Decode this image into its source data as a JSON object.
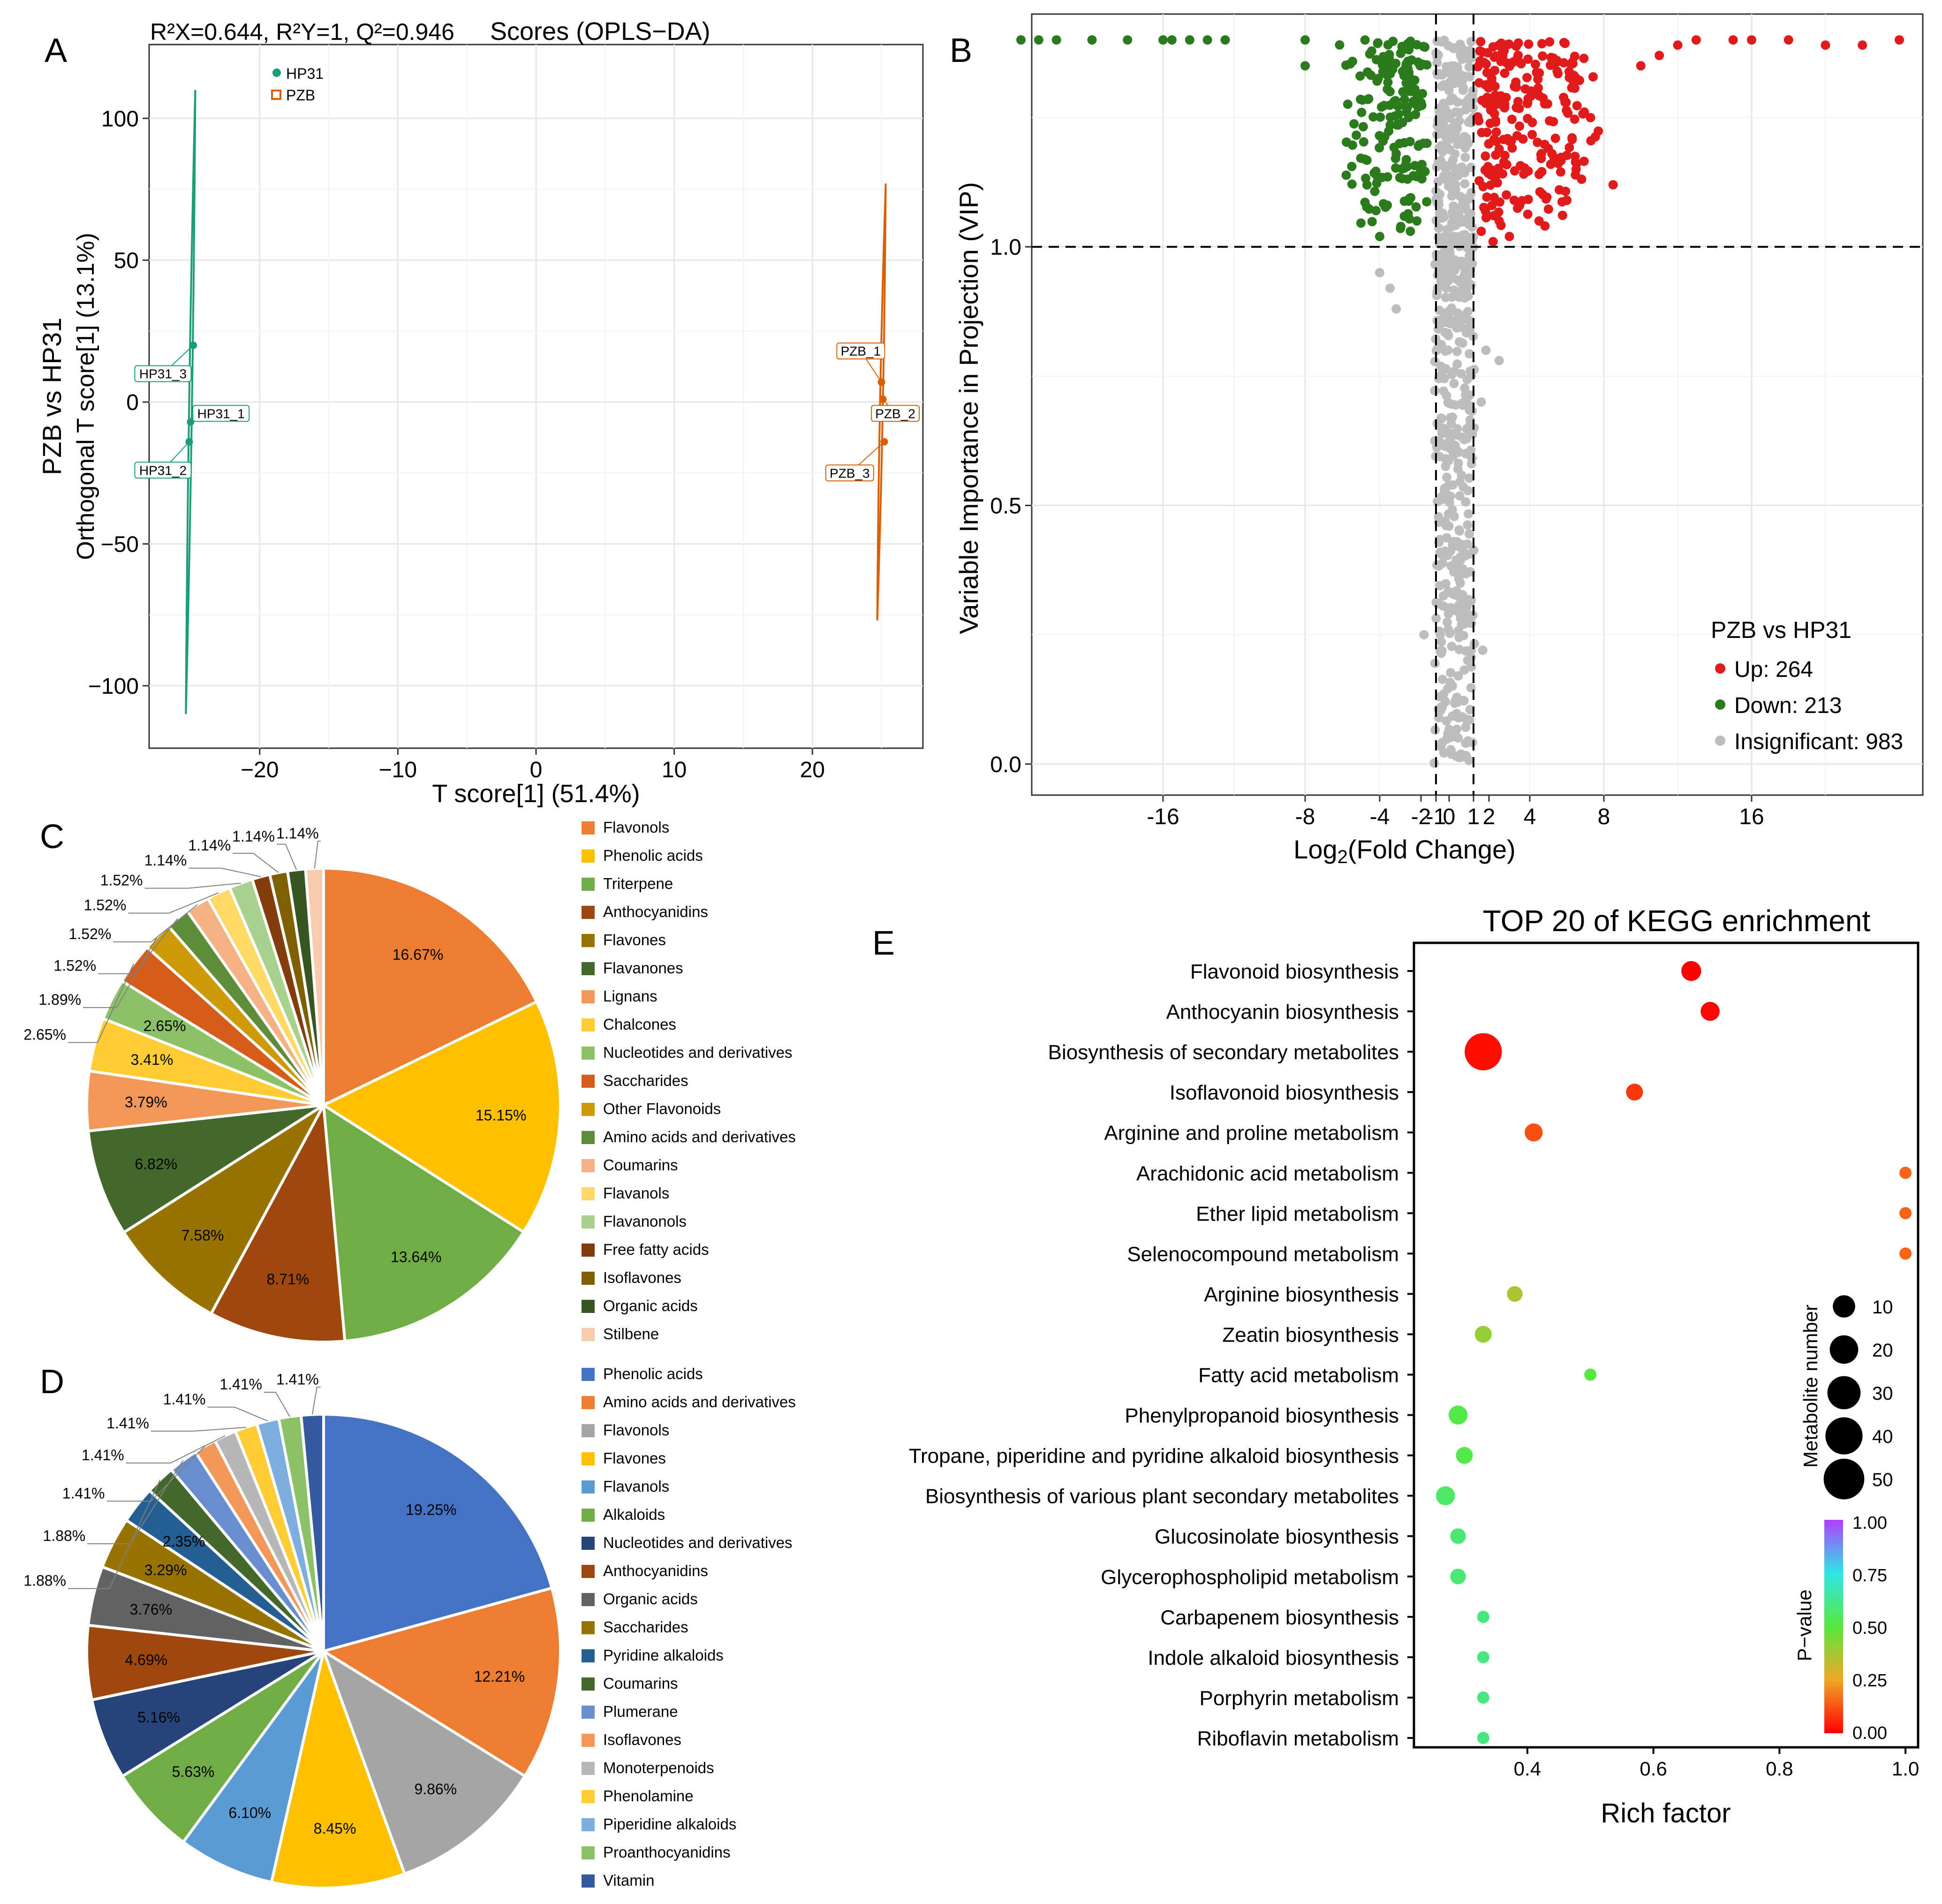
{
  "chart_data": [
    {
      "panel": "A",
      "type": "scatter",
      "title": "Scores (OPLS−DA)",
      "subtitle": "R²X=0.644, R²Y=1, Q²=0.946",
      "xlabel": "T score[1] (51.4%)",
      "ylabel": "PZB vs HP31",
      "ylabel2": "Orthogonal T score[1] (13.1%)",
      "xlim": [
        -28,
        28
      ],
      "ylim": [
        -122,
        126
      ],
      "xticks": [
        -20,
        -10,
        0,
        10,
        20
      ],
      "yticks": [
        -100,
        -50,
        0,
        50,
        100
      ],
      "xtick_labels": [
        "−20",
        "−10",
        "0",
        "10",
        "20"
      ],
      "ytick_labels": [
        "−100",
        "−50",
        "0",
        "50",
        "100"
      ],
      "legend": [
        {
          "name": "HP31",
          "color": "#1b9e77",
          "shape": "circle"
        },
        {
          "name": "PZB",
          "color": "#d95f02",
          "shape": "square"
        }
      ],
      "series": [
        {
          "name": "HP31",
          "color": "#1b9e77",
          "ellipse": {
            "cx": -25,
            "cy": 0,
            "top": 110,
            "bottom": -110
          },
          "points": [
            {
              "label": "HP31_3",
              "x": -24.8,
              "y": 20,
              "lx": -27,
              "ly": 10
            },
            {
              "label": "HP31_1",
              "x": -25.0,
              "y": -7,
              "lx": -22.8,
              "ly": -4
            },
            {
              "label": "HP31_2",
              "x": -25.1,
              "y": -14,
              "lx": -27,
              "ly": -24
            }
          ]
        },
        {
          "name": "PZB",
          "color": "#d95f02",
          "ellipse": {
            "cx": 25,
            "cy": 0,
            "top": 77,
            "bottom": -77
          },
          "points": [
            {
              "label": "PZB_1",
              "x": 25.0,
              "y": 7,
              "lx": 23.5,
              "ly": 18
            },
            {
              "label": "PZB_2",
              "x": 25.1,
              "y": 1,
              "lx": 26,
              "ly": -4
            },
            {
              "label": "PZB_3",
              "x": 25.2,
              "y": -14,
              "lx": 22.7,
              "ly": -25
            }
          ]
        }
      ]
    },
    {
      "panel": "B",
      "type": "scatter",
      "title": "",
      "xlabel": "Log2(Fold Change)",
      "xlabel_main": "Log",
      "xlabel_sub": "2",
      "xlabel_rest": "(Fold Change)",
      "ylabel": "Variable Importance in Projection (VIP)",
      "ylim": [
        -0.06,
        1.45
      ],
      "xtick_values": [
        -16,
        -8,
        -4,
        -2,
        -1,
        0,
        1,
        2,
        4,
        8,
        16
      ],
      "xtick_labels": [
        "-16",
        "-8",
        "-4",
        "-2",
        "-1",
        "0",
        "1",
        "2",
        "4",
        "8",
        "16"
      ],
      "yticks": [
        0.0,
        0.5,
        1.0
      ],
      "ytick_labels": [
        "0.0",
        "0.5",
        "1.0"
      ],
      "threshold_vip": 1.0,
      "threshold_fc": [
        -1,
        1
      ],
      "legend_title": "PZB vs HP31",
      "legend": [
        {
          "name": "Up: 264",
          "color": "#e31a1c"
        },
        {
          "name": "Down: 213",
          "color": "#2b7b1e"
        },
        {
          "name": "Insignificant: 983",
          "color": "#bdbdbd"
        }
      ],
      "counts": {
        "up": 264,
        "down": 213,
        "insignificant": 983
      },
      "sample_points": {
        "up": [
          [
            24,
            1.4
          ],
          [
            22,
            1.39
          ],
          [
            20,
            1.39
          ],
          [
            18,
            1.4
          ],
          [
            16,
            1.4
          ],
          [
            15,
            1.4
          ],
          [
            13,
            1.4
          ],
          [
            12,
            1.39
          ],
          [
            11,
            1.37
          ],
          [
            10,
            1.35
          ],
          [
            6.5,
            1.15
          ],
          [
            6,
            1.09
          ],
          [
            5.2,
            1.18
          ],
          [
            8.5,
            1.12
          ],
          [
            4.5,
            1.05
          ],
          [
            3.5,
            1.08
          ],
          [
            2.5,
            1.05
          ],
          [
            3,
            1.02
          ],
          [
            2.2,
            1.01
          ],
          [
            1.5,
            1.03
          ]
        ],
        "down": [
          [
            -24,
            1.4
          ],
          [
            -23,
            1.4
          ],
          [
            -22,
            1.4
          ],
          [
            -20,
            1.4
          ],
          [
            -18,
            1.4
          ],
          [
            -16,
            1.4
          ],
          [
            -15.5,
            1.4
          ],
          [
            -14.5,
            1.4
          ],
          [
            -13.5,
            1.4
          ],
          [
            -12.5,
            1.4
          ],
          [
            -8,
            1.4
          ],
          [
            -8,
            1.35
          ],
          [
            -4.2,
            1.07
          ],
          [
            -4.0,
            1.02
          ],
          [
            -3.5,
            1.3
          ],
          [
            -3.2,
            1.18
          ],
          [
            -2.6,
            1.25
          ],
          [
            -2.2,
            1.05
          ]
        ],
        "insignificant": [
          [
            -4,
            0.95
          ],
          [
            -3.5,
            0.92
          ],
          [
            -3.2,
            0.88
          ],
          [
            1.8,
            0.8
          ],
          [
            2.5,
            0.78
          ],
          [
            1.5,
            0.7
          ],
          [
            -1.8,
            0.25
          ],
          [
            1.6,
            0.22
          ]
        ]
      }
    },
    {
      "panel": "C",
      "type": "pie",
      "title": "",
      "slices": [
        {
          "label": "Flavonols",
          "value": 16.67,
          "text": "16.67%",
          "color": "#ED7D31"
        },
        {
          "label": "Phenolic acids",
          "value": 15.15,
          "text": "15.15%",
          "color": "#FFC000"
        },
        {
          "label": "Triterpene",
          "value": 13.64,
          "text": "13.64%",
          "color": "#70AD47"
        },
        {
          "label": "Anthocyanidins",
          "value": 8.71,
          "text": "8.71%",
          "color": "#9E480E"
        },
        {
          "label": "Flavones",
          "value": 7.58,
          "text": "7.58%",
          "color": "#997300"
        },
        {
          "label": "Flavanones",
          "value": 6.82,
          "text": "6.82%",
          "color": "#43682B"
        },
        {
          "label": "Lignans",
          "value": 3.79,
          "text": "3.79%",
          "color": "#F1975A"
        },
        {
          "label": "Chalcones",
          "value": 3.41,
          "text": "3.41%",
          "color": "#FFCD33"
        },
        {
          "label": "Nucleotides and derivatives",
          "value": 2.65,
          "text": "2.65%",
          "color": "#8CC168"
        },
        {
          "label": "Saccharides",
          "value": 2.65,
          "text": "2.65%",
          "color": "#D55C19"
        },
        {
          "label": "Other Flavonoids",
          "value": 1.89,
          "text": "1.89%",
          "color": "#CC9A06"
        },
        {
          "label": "Amino acids and derivatives",
          "value": 1.52,
          "text": "1.52%",
          "color": "#5E8C3B"
        },
        {
          "label": "Coumarins",
          "value": 1.52,
          "text": "1.52%",
          "color": "#F4B183"
        },
        {
          "label": "Flavanols",
          "value": 1.52,
          "text": "1.52%",
          "color": "#FFD966"
        },
        {
          "label": "Flavanonols",
          "value": 1.52,
          "text": "1.52%",
          "color": "#A9D18E"
        },
        {
          "label": "Free fatty acids",
          "value": 1.14,
          "text": "1.14%",
          "color": "#843C0C"
        },
        {
          "label": "Isoflavones",
          "value": 1.14,
          "text": "1.14%",
          "color": "#7F6000"
        },
        {
          "label": "Organic acids",
          "value": 1.14,
          "text": "1.14%",
          "color": "#375623"
        },
        {
          "label": "Stilbene",
          "value": 1.14,
          "text": "1.14%",
          "color": "#F8CBAD"
        }
      ]
    },
    {
      "panel": "D",
      "type": "pie",
      "title": "",
      "slices": [
        {
          "label": "Phenolic acids",
          "value": 19.25,
          "text": "19.25%",
          "color": "#4472C4"
        },
        {
          "label": "Amino acids and derivatives",
          "value": 12.21,
          "text": "12.21%",
          "color": "#ED7D31"
        },
        {
          "label": "Flavonols",
          "value": 9.86,
          "text": "9.86%",
          "color": "#A5A5A5"
        },
        {
          "label": "Flavones",
          "value": 8.45,
          "text": "8.45%",
          "color": "#FFC000"
        },
        {
          "label": "Flavanols",
          "value": 6.1,
          "text": "6.10%",
          "color": "#5B9BD5"
        },
        {
          "label": "Alkaloids",
          "value": 5.63,
          "text": "5.63%",
          "color": "#70AD47"
        },
        {
          "label": "Nucleotides and derivatives",
          "value": 5.16,
          "text": "5.16%",
          "color": "#264478"
        },
        {
          "label": "Anthocyanidins",
          "value": 4.69,
          "text": "4.69%",
          "color": "#9E480E"
        },
        {
          "label": "Organic acids",
          "value": 3.76,
          "text": "3.76%",
          "color": "#636363"
        },
        {
          "label": "Saccharides",
          "value": 3.29,
          "text": "3.29%",
          "color": "#997300"
        },
        {
          "label": "Pyridine alkaloids",
          "value": 2.35,
          "text": "2.35%",
          "color": "#255E91"
        },
        {
          "label": "Coumarins",
          "value": 1.88,
          "text": "1.88%",
          "color": "#43682B"
        },
        {
          "label": "Plumerane",
          "value": 1.88,
          "text": "1.88%",
          "color": "#698ED0"
        },
        {
          "label": "Isoflavones",
          "value": 1.41,
          "text": "1.41%",
          "color": "#F1975A"
        },
        {
          "label": "Monoterpenoids",
          "value": 1.41,
          "text": "1.41%",
          "color": "#B7B7B7"
        },
        {
          "label": "Phenolamine",
          "value": 1.41,
          "text": "1.41%",
          "color": "#FFCD33"
        },
        {
          "label": "Piperidine alkaloids",
          "value": 1.41,
          "text": "1.41%",
          "color": "#7CAFDD"
        },
        {
          "label": "Proanthocyanidins",
          "value": 1.41,
          "text": "1.41%",
          "color": "#8CC168"
        },
        {
          "label": "Vitamin",
          "value": 1.41,
          "text": "1.41%",
          "color": "#335AA1"
        }
      ]
    },
    {
      "panel": "E",
      "type": "scatter",
      "title": "TOP 20 of KEGG enrichment",
      "xlabel": "Rich factor",
      "xlim": [
        0.22,
        1.02
      ],
      "xticks": [
        0.4,
        0.6,
        0.8,
        1.0
      ],
      "xtick_labels": [
        "0.4",
        "0.6",
        "0.8",
        "1.0"
      ],
      "size_legend_title": "Metabolite number",
      "size_legend": [
        10,
        20,
        30,
        40,
        50
      ],
      "size_legend_labels": [
        "10",
        "20",
        "30",
        "40",
        "50"
      ],
      "color_legend_title": "P−value",
      "color_legend_ticks": [
        "1.00",
        "0.75",
        "0.50",
        "0.25",
        "0.00"
      ],
      "pathways": [
        {
          "name": "Flavonoid biosynthesis",
          "rich": 0.66,
          "count": 7,
          "p": 0.0
        },
        {
          "name": "Anthocyanin biosynthesis",
          "rich": 0.69,
          "count": 6,
          "p": 0.01
        },
        {
          "name": "Biosynthesis of secondary metabolites",
          "rich": 0.33,
          "count": 40,
          "p": 0.02
        },
        {
          "name": "Isoflavonoid biosynthesis",
          "rich": 0.57,
          "count": 4,
          "p": 0.08
        },
        {
          "name": "Arginine and proline metabolism",
          "rich": 0.41,
          "count": 5,
          "p": 0.12
        },
        {
          "name": "Arachidonic acid metabolism",
          "rich": 1.0,
          "count": 1,
          "p": 0.15
        },
        {
          "name": "Ether lipid metabolism",
          "rich": 1.0,
          "count": 1,
          "p": 0.15
        },
        {
          "name": "Selenocompound metabolism",
          "rich": 1.0,
          "count": 1,
          "p": 0.15
        },
        {
          "name": "Arginine biosynthesis",
          "rich": 0.38,
          "count": 3,
          "p": 0.36
        },
        {
          "name": "Zeatin biosynthesis",
          "rich": 0.33,
          "count": 4,
          "p": 0.4
        },
        {
          "name": "Fatty acid metabolism",
          "rich": 0.5,
          "count": 1,
          "p": 0.5
        },
        {
          "name": "Phenylpropanoid biosynthesis",
          "rich": 0.29,
          "count": 6,
          "p": 0.52
        },
        {
          "name": "Tropane, piperidine and pyridine alkaloid biosynthesis ",
          "rich": 0.3,
          "count": 4,
          "p": 0.52
        },
        {
          "name": "Biosynthesis of various plant secondary metabolites",
          "rich": 0.27,
          "count": 6,
          "p": 0.56
        },
        {
          "name": "Glucosinolate biosynthesis",
          "rich": 0.29,
          "count": 3,
          "p": 0.58
        },
        {
          "name": "Glycerophospholipid metabolism ",
          "rich": 0.29,
          "count": 3,
          "p": 0.58
        },
        {
          "name": "Carbapenem biosynthesis",
          "rich": 0.33,
          "count": 1,
          "p": 0.6
        },
        {
          "name": "Indole alkaloid biosynthesis",
          "rich": 0.33,
          "count": 1,
          "p": 0.6
        },
        {
          "name": "Porphyrin metabolism",
          "rich": 0.33,
          "count": 1,
          "p": 0.6
        },
        {
          "name": "Riboflavin metabolism",
          "rich": 0.33,
          "count": 1,
          "p": 0.6
        }
      ]
    }
  ],
  "panel_letters": [
    "A",
    "B",
    "C",
    "D",
    "E"
  ]
}
